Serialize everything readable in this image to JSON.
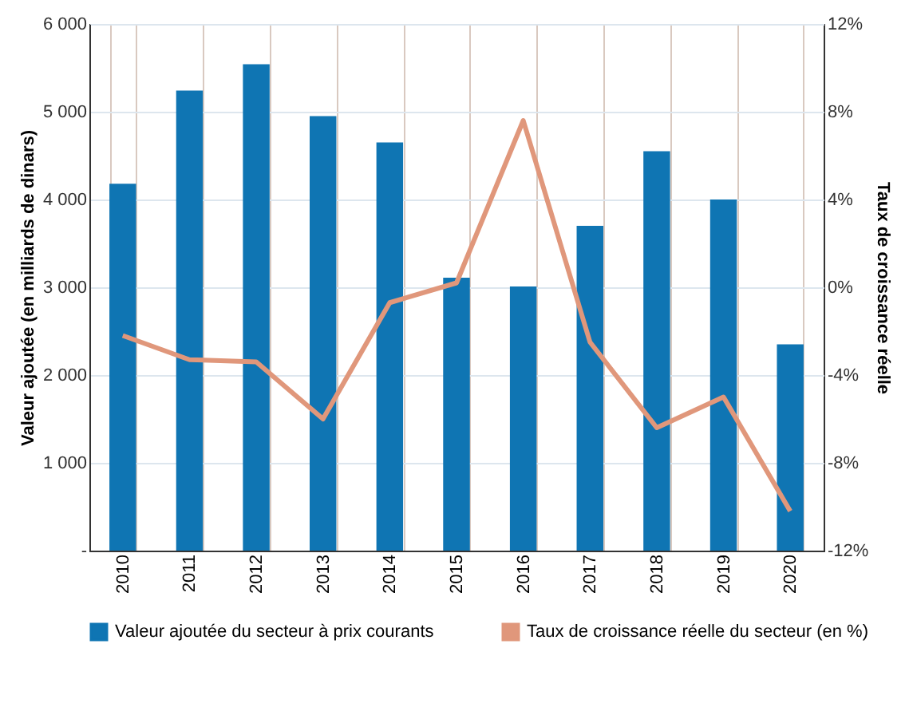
{
  "chart_data": {
    "type": "bar",
    "categories": [
      "2010",
      "2011",
      "2012",
      "2013",
      "2014",
      "2015",
      "2016",
      "2017",
      "2018",
      "2019",
      "2020"
    ],
    "series": [
      {
        "name": "Valeur ajoutée du secteur à prix courants",
        "color": "#0f75b3",
        "values": [
          4180,
          5240,
          5540,
          4950,
          4650,
          3110,
          3010,
          3700,
          4550,
          4000,
          2350
        ]
      },
      {
        "name": "Taux de croissance réelle du secteur (en %)",
        "type": "line",
        "axis": "y2",
        "color": "#e0977b",
        "values": [
          -2.2,
          -3.3,
          -3.4,
          -6.0,
          -0.7,
          0.2,
          7.6,
          -2.5,
          -6.4,
          -5.0,
          -10.2
        ]
      }
    ],
    "ylabel": "Valeur ajoutée (en milliards de dinars)",
    "y2label": "Taux de croissance réelle",
    "ylim": [
      0,
      6000
    ],
    "yticks": [
      {
        "value": 0,
        "label": "-"
      },
      {
        "value": 1000,
        "label": "1 000"
      },
      {
        "value": 2000,
        "label": "2 000"
      },
      {
        "value": 3000,
        "label": "3 000"
      },
      {
        "value": 4000,
        "label": "4 000"
      },
      {
        "value": 5000,
        "label": "5 000"
      },
      {
        "value": 6000,
        "label": "6 000"
      }
    ],
    "y2lim": [
      -12,
      12
    ],
    "y2ticks": [
      {
        "value": -12,
        "label": "-12%"
      },
      {
        "value": -8,
        "label": "-8%"
      },
      {
        "value": -4,
        "label": "-4%"
      },
      {
        "value": 0,
        "label": "0%"
      },
      {
        "value": 4,
        "label": "4%"
      },
      {
        "value": 8,
        "label": "8%"
      },
      {
        "value": 12,
        "label": "12%"
      }
    ],
    "grid": true,
    "legend": "bottom"
  }
}
